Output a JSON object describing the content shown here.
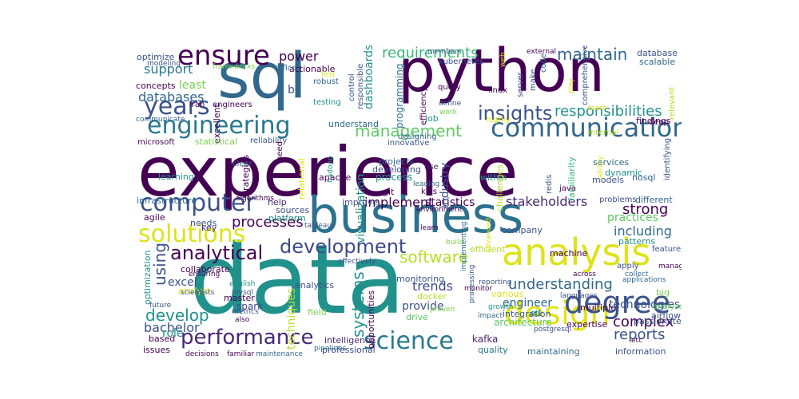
{
  "palette": {
    "d1": "#440154",
    "d2": "#3b528b",
    "t": "#21918c",
    "g": "#5ec962",
    "y": "#fde725"
  },
  "words": [
    {
      "text": "experience",
      "color": "#440154"
    },
    {
      "text": "data",
      "color": "#21918c"
    },
    {
      "text": "python",
      "color": "#440154"
    },
    {
      "text": "sql",
      "color": "#31688e"
    },
    {
      "text": "business",
      "color": "#2c728e"
    },
    {
      "text": "analysis",
      "color": "#dde318"
    },
    {
      "text": "design",
      "color": "#e2e418"
    },
    {
      "text": "communication",
      "color": "#31688e"
    },
    {
      "text": "engineering",
      "color": "#2a788e"
    },
    {
      "text": "science",
      "color": "#2a788e"
    },
    {
      "text": "years",
      "color": "#3b528b"
    },
    {
      "text": "ensure",
      "color": "#440154"
    },
    {
      "text": "computer",
      "color": "#3b528b"
    },
    {
      "text": "solutions",
      "color": "#dde318"
    },
    {
      "text": "degree",
      "color": "#3b528b"
    },
    {
      "text": "performance",
      "color": "#482878"
    },
    {
      "text": "development",
      "color": "#3e4989"
    },
    {
      "text": "analytical",
      "color": "#440154"
    },
    {
      "text": "management",
      "color": "#5ec962"
    },
    {
      "text": "insights",
      "color": "#3b528b"
    },
    {
      "text": "software",
      "color": "#b5de2b"
    },
    {
      "text": "requirements",
      "color": "#35b779"
    },
    {
      "text": "maintain",
      "color": "#31688e"
    },
    {
      "text": "responsibilities",
      "color": "#21918c"
    },
    {
      "text": "understanding",
      "color": "#31688e"
    },
    {
      "text": "stakeholders",
      "color": "#482878"
    },
    {
      "text": "strong",
      "color": "#440154"
    },
    {
      "text": "reports",
      "color": "#3b528b"
    },
    {
      "text": "complex",
      "color": "#440154"
    },
    {
      "text": "develop",
      "color": "#21918c"
    },
    {
      "text": "processes",
      "color": "#440154"
    },
    {
      "text": "implement",
      "color": "#440154"
    },
    {
      "text": "including",
      "color": "#31688e"
    },
    {
      "text": "power",
      "color": "#440154"
    },
    {
      "text": "databases",
      "color": "#31688e"
    },
    {
      "text": "support",
      "color": "#2a788e"
    },
    {
      "text": "least",
      "color": "#7ad151"
    },
    {
      "text": "bachelor",
      "color": "#3b528b"
    },
    {
      "text": "engineer",
      "color": "#31688e"
    },
    {
      "text": "trends",
      "color": "#3e4989"
    },
    {
      "text": "statistics",
      "color": "#440154"
    },
    {
      "text": "practices",
      "color": "#5ec962"
    },
    {
      "text": "technologies",
      "color": "#3b528b"
    },
    {
      "text": "excel",
      "color": "#3b528b"
    },
    {
      "text": "role",
      "color": "#21918c"
    },
    {
      "text": "provide",
      "color": "#3b528b"
    },
    {
      "text": "architecture",
      "color": "#5ec962"
    },
    {
      "text": "using",
      "color": "#3b528b"
    },
    {
      "text": "systems",
      "color": "#21918c"
    },
    {
      "text": "visualization",
      "color": "#21918c"
    },
    {
      "text": "dashboards",
      "color": "#21918c"
    },
    {
      "text": "industry",
      "color": "#3b528b"
    },
    {
      "text": "bi",
      "color": "#3b528b"
    },
    {
      "text": "techniques",
      "color": "#b5de2b"
    },
    {
      "text": "programming",
      "color": "#2a788e"
    },
    {
      "text": "process",
      "color": "#21918c"
    },
    {
      "text": "spark",
      "color": "#3e4989"
    },
    {
      "text": "kafka",
      "color": "#482878"
    },
    {
      "text": "actionable",
      "color": "#440154"
    },
    {
      "text": "concepts",
      "color": "#440154"
    },
    {
      "text": "optimize",
      "color": "#3b528b"
    },
    {
      "text": "infrastructure",
      "color": "#31688e"
    },
    {
      "text": "agile",
      "color": "#440154"
    },
    {
      "text": "key",
      "color": "#482878"
    },
    {
      "text": "needs",
      "color": "#3b528b"
    },
    {
      "text": "collaborate",
      "color": "#440154"
    },
    {
      "text": "learning",
      "color": "#21918c"
    },
    {
      "text": "help",
      "color": "#482878"
    },
    {
      "text": "sources",
      "color": "#3e4989"
    },
    {
      "text": "platform",
      "color": "#21918c"
    },
    {
      "text": "analytics",
      "color": "#3b528b"
    },
    {
      "text": "apache",
      "color": "#440154"
    },
    {
      "text": "improve",
      "color": "#3b528b"
    },
    {
      "text": "developing",
      "color": "#3e4989"
    },
    {
      "text": "projects",
      "color": "#31688e"
    },
    {
      "text": "git",
      "color": "#440154"
    },
    {
      "text": "job",
      "color": "#21918c"
    },
    {
      "text": "understand",
      "color": "#31688e"
    },
    {
      "text": "monitoring",
      "color": "#3b528b"
    },
    {
      "text": "docker",
      "color": "#b5de2b"
    },
    {
      "text": "drive",
      "color": "#5ec962"
    },
    {
      "text": "field",
      "color": "#7ad151"
    },
    {
      "text": "intelligence",
      "color": "#482878"
    },
    {
      "text": "professional",
      "color": "#3e4989"
    },
    {
      "text": "quality",
      "color": "#2a788e"
    },
    {
      "text": "issues",
      "color": "#440154"
    },
    {
      "text": "based",
      "color": "#440154"
    },
    {
      "text": "information",
      "color": "#3b528b"
    },
    {
      "text": "passionate",
      "color": "#3b528b"
    },
    {
      "text": "expertise",
      "color": "#440154"
    },
    {
      "text": "big",
      "color": "#7ad151"
    },
    {
      "text": "machine",
      "color": "#440154"
    },
    {
      "text": "various",
      "color": "#dde318"
    },
    {
      "text": "efficient",
      "color": "#b5de2b"
    },
    {
      "text": "company",
      "color": "#3b528b"
    },
    {
      "text": "patterns",
      "color": "#21918c"
    },
    {
      "text": "models",
      "color": "#3b528b"
    },
    {
      "text": "services",
      "color": "#31688e"
    },
    {
      "text": "dynamic",
      "color": "#21918c"
    },
    {
      "text": "nosql",
      "color": "#31688e"
    },
    {
      "text": "different",
      "color": "#31688e"
    },
    {
      "text": "within",
      "color": "#21918c"
    },
    {
      "text": "findings",
      "color": "#440154"
    },
    {
      "text": "database",
      "color": "#3b528b"
    },
    {
      "text": "scalable",
      "color": "#31688e"
    },
    {
      "text": "excellent",
      "color": "#440154"
    },
    {
      "text": "relational",
      "color": "#dde318"
    },
    {
      "text": "strategies",
      "color": "#440154"
    },
    {
      "text": "statistical",
      "color": "#7ad151"
    },
    {
      "text": "optimization",
      "color": "#21918c"
    },
    {
      "text": "master",
      "color": "#440154"
    },
    {
      "text": "analyst",
      "color": "#dde318"
    },
    {
      "text": "opportunities",
      "color": "#440154"
    },
    {
      "text": "integration",
      "color": "#3b528b"
    },
    {
      "text": "etl",
      "color": "#21918c"
    },
    {
      "text": "multiple",
      "color": "#440154"
    },
    {
      "text": "maintaining",
      "color": "#31688e"
    },
    {
      "text": "airflow",
      "color": "#3b528b"
    },
    {
      "text": "analyze",
      "color": "#5ec962"
    },
    {
      "text": "features",
      "color": "#3b528b"
    },
    {
      "text": "challenges",
      "color": "#b5de2b"
    },
    {
      "text": "familiarity",
      "color": "#35b779"
    },
    {
      "text": "apply",
      "color": "#3b528b"
    },
    {
      "text": "problems",
      "color": "#3b528b"
    },
    {
      "text": "identifying",
      "color": "#3b528b"
    },
    {
      "text": "java",
      "color": "#440154"
    },
    {
      "text": "redis",
      "color": "#3b528b"
    },
    {
      "text": "innovative",
      "color": "#3b528b"
    },
    {
      "text": "reliability",
      "color": "#3b528b"
    },
    {
      "text": "need",
      "color": "#440154"
    },
    {
      "text": "clear",
      "color": "#31688e"
    },
    {
      "text": "microsoft",
      "color": "#440154"
    },
    {
      "text": "office",
      "color": "#31688e"
    },
    {
      "text": "iran",
      "color": "#440154"
    },
    {
      "text": "engineers",
      "color": "#440154"
    },
    {
      "text": "communicate",
      "color": "#31688e"
    },
    {
      "text": "modeling",
      "color": "#3b528b"
    },
    {
      "text": "frameworks",
      "color": "#7ad151"
    },
    {
      "text": "robust",
      "color": "#31688e"
    },
    {
      "text": "testing",
      "color": "#21918c"
    },
    {
      "text": "responsible",
      "color": "#3b528b"
    },
    {
      "text": "control",
      "color": "#3b528b"
    },
    {
      "text": "efficiency",
      "color": "#440154"
    },
    {
      "text": "designing",
      "color": "#31688e"
    },
    {
      "text": "query",
      "color": "#440154"
    },
    {
      "text": "kubernetes",
      "color": "#3b528b"
    },
    {
      "text": "members",
      "color": "#3b528b"
    },
    {
      "text": "define",
      "color": "#3b528b"
    },
    {
      "text": "linux",
      "color": "#440154"
    },
    {
      "text": "external",
      "color": "#440154"
    },
    {
      "text": "server",
      "color": "#3b528b"
    },
    {
      "text": "make",
      "color": "#3b528b"
    },
    {
      "text": "code",
      "color": "#31688e"
    },
    {
      "text": "comprehensive",
      "color": "#3b528b"
    },
    {
      "text": "deep",
      "color": "#440154"
    },
    {
      "text": "relevant",
      "color": "#b5de2b"
    },
    {
      "text": "internal",
      "color": "#b5de2b"
    },
    {
      "text": "highly",
      "color": "#dde318"
    },
    {
      "text": "use",
      "color": "#482878"
    },
    {
      "text": "leading",
      "color": "#31688e"
    },
    {
      "text": "kpis",
      "color": "#440154"
    },
    {
      "text": "hadoop",
      "color": "#21918c"
    },
    {
      "text": "environment",
      "color": "#440154"
    },
    {
      "text": "learn",
      "color": "#440154"
    },
    {
      "text": "build",
      "color": "#7ad151"
    },
    {
      "text": "processing",
      "color": "#3b528b"
    },
    {
      "text": "implementing",
      "color": "#31688e"
    },
    {
      "text": "tableau",
      "color": "#3b528b"
    },
    {
      "text": "pipelines",
      "color": "#31688e"
    },
    {
      "text": "scientists",
      "color": "#3b528b"
    },
    {
      "text": "future",
      "color": "#3b528b"
    },
    {
      "text": "ensuring",
      "color": "#440154"
    },
    {
      "text": "english",
      "color": "#21918c"
    },
    {
      "text": "mysql",
      "color": "#3b528b"
    },
    {
      "text": "metrics",
      "color": "#3b528b"
    },
    {
      "text": "also",
      "color": "#440154"
    },
    {
      "text": "decisions",
      "color": "#440154"
    },
    {
      "text": "familiar",
      "color": "#440154"
    },
    {
      "text": "maintenance",
      "color": "#31688e"
    },
    {
      "text": "reporting",
      "color": "#3b528b"
    },
    {
      "text": "monitor",
      "color": "#440154"
    },
    {
      "text": "proven",
      "color": "#7ad151"
    },
    {
      "text": "impact",
      "color": "#31688e"
    },
    {
      "text": "growth",
      "color": "#21918c"
    },
    {
      "text": "across",
      "color": "#440154"
    },
    {
      "text": "languages",
      "color": "#3b528b"
    },
    {
      "text": "postgresql",
      "color": "#3b528b"
    },
    {
      "text": "collect",
      "color": "#31688e"
    },
    {
      "text": "applications",
      "color": "#31688e"
    },
    {
      "text": "manage",
      "color": "#440154"
    },
    {
      "text": "etc",
      "color": "#440154"
    },
    {
      "text": "advanced",
      "color": "#dde318"
    },
    {
      "text": "work",
      "color": "#7ad151"
    },
    {
      "text": "first",
      "color": "#dde318"
    },
    {
      "text": "effectively",
      "color": "#3b528b"
    },
    {
      "text": "algorithms",
      "color": "#440154"
    },
    {
      "text": "web",
      "color": "#dde318"
    },
    {
      "text": "play",
      "color": "#dde318"
    },
    {
      "text": "ability",
      "color": "#dde318"
    },
    {
      "text": "team",
      "color": "#dde318"
    }
  ]
}
